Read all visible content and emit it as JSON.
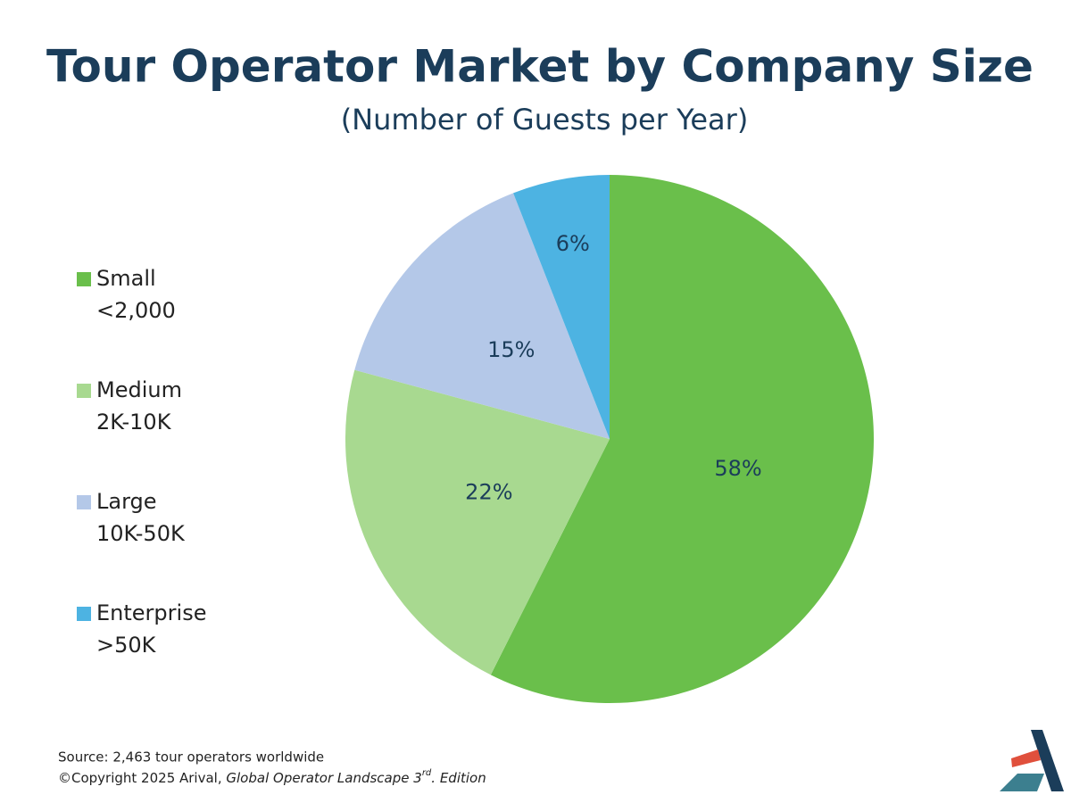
{
  "chart_data": {
    "type": "pie",
    "title": "Tour Operator Market by Company Size",
    "subtitle": "(Number of Guests per Year)",
    "categories": [
      "Small",
      "Medium",
      "Large",
      "Enterprise"
    ],
    "category_ranges": [
      "<2,000",
      "2K-10K",
      "10K-50K",
      ">50K"
    ],
    "values": [
      58,
      22,
      15,
      6
    ],
    "value_labels": [
      "58%",
      "22%",
      "15%",
      "6%"
    ],
    "colors": [
      "#6abf4b",
      "#a8d990",
      "#b4c8e8",
      "#4db3e2"
    ],
    "legend": "left",
    "source": "Source: 2,463 tour operators worldwide",
    "copyright": {
      "text": "©Copyright 2025 Arival,",
      "italic": "Global Operator Landscape 3",
      "superscript": "rd",
      "suffix": ". Edition"
    }
  }
}
